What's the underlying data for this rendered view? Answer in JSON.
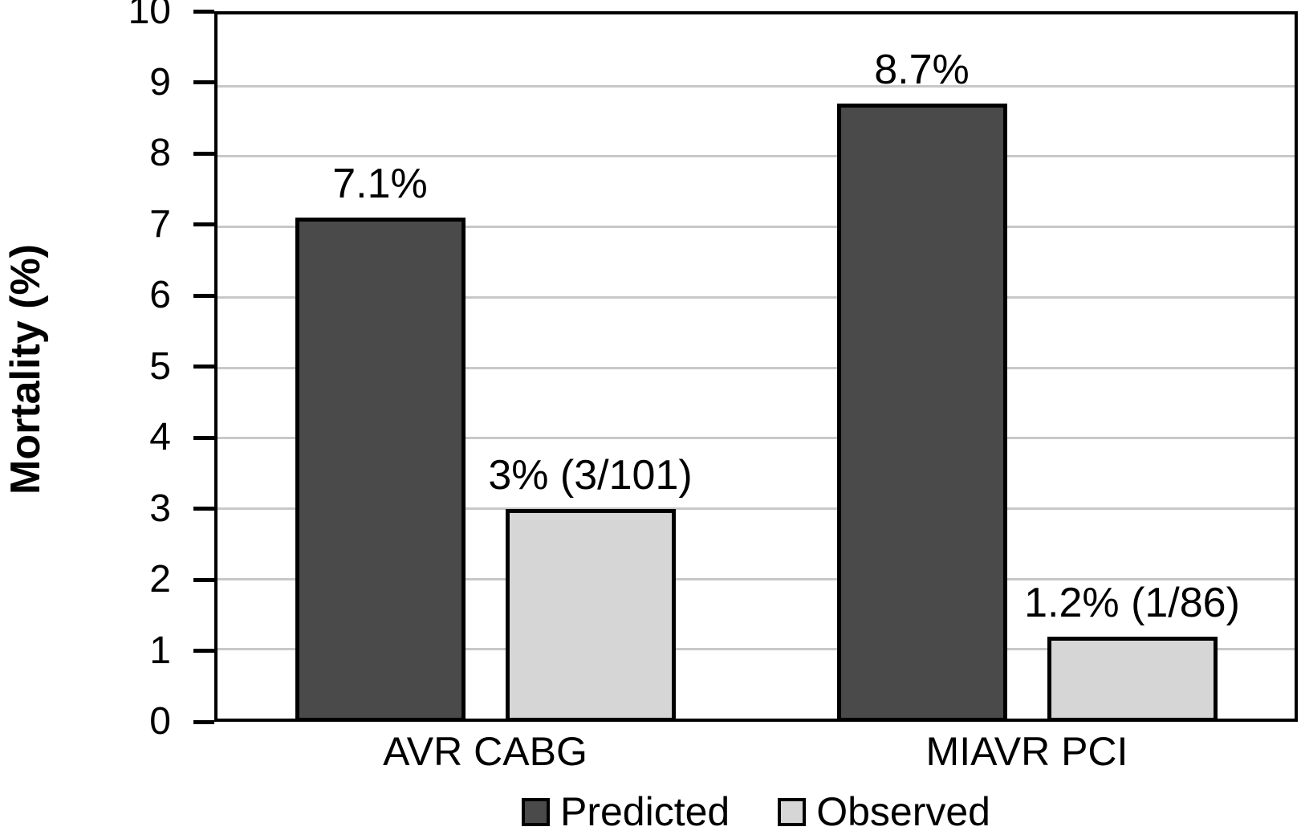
{
  "chart_data": {
    "type": "bar",
    "title": "",
    "xlabel": "",
    "ylabel": "Mortality (%)",
    "ylim": [
      0,
      10
    ],
    "yticks": [
      0,
      1,
      2,
      3,
      4,
      5,
      6,
      7,
      8,
      9,
      10
    ],
    "grid": true,
    "legend_position": "bottom",
    "categories": [
      "AVR CABG",
      "MIAVR PCI"
    ],
    "series": [
      {
        "name": "Predicted",
        "color": "#4a4a4a",
        "values": [
          7.1,
          8.7
        ],
        "labels": [
          "7.1%",
          "8.7%"
        ]
      },
      {
        "name": "Observed",
        "color": "#d6d6d6",
        "values": [
          3.0,
          1.2
        ],
        "labels": [
          "3% (3/101)",
          "1.2% (1/86)"
        ]
      }
    ]
  },
  "colors": {
    "axis": "#000000",
    "gridline": "#c8c8c8",
    "background": "#ffffff",
    "text": "#000000"
  }
}
